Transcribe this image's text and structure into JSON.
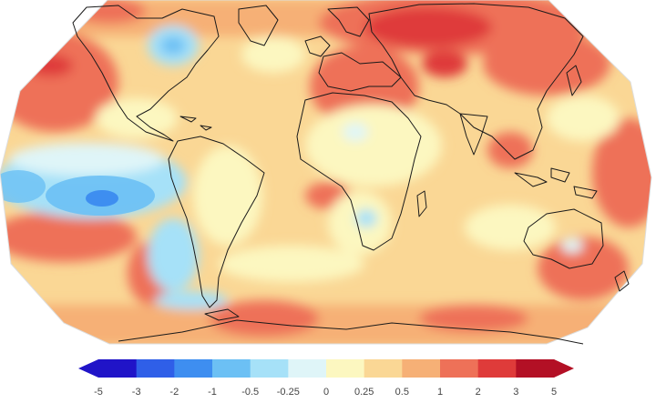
{
  "legend": {
    "ticks": [
      "-5",
      "-3",
      "-2",
      "-1",
      "-0.5",
      "-0.25",
      "0",
      "0.25",
      "0.5",
      "1",
      "2",
      "3",
      "5"
    ],
    "bins": [
      {
        "color": "#2014c8",
        "range": "-5 to -3"
      },
      {
        "color": "#2f5fe8",
        "range": "-3 to -2"
      },
      {
        "color": "#3e8ef0",
        "range": "-2 to -1"
      },
      {
        "color": "#6cc0f4",
        "range": "-1 to -0.5"
      },
      {
        "color": "#a6e1f8",
        "range": "-0.5 to -0.25"
      },
      {
        "color": "#dff5f8",
        "range": "-0.25 to 0"
      },
      {
        "color": "#fcf7c0",
        "range": "0 to 0.25"
      },
      {
        "color": "#fad795",
        "range": "0.25 to 0.5"
      },
      {
        "color": "#f6b076",
        "range": "0.5 to 1"
      },
      {
        "color": "#ee7158",
        "range": "1 to 2"
      },
      {
        "color": "#df3b3a",
        "range": "2 to 3"
      },
      {
        "color": "#b31025",
        "range": "3 to 5"
      }
    ],
    "arrow_colors": {
      "low": "#2014c8",
      "high": "#b31025"
    }
  }
}
